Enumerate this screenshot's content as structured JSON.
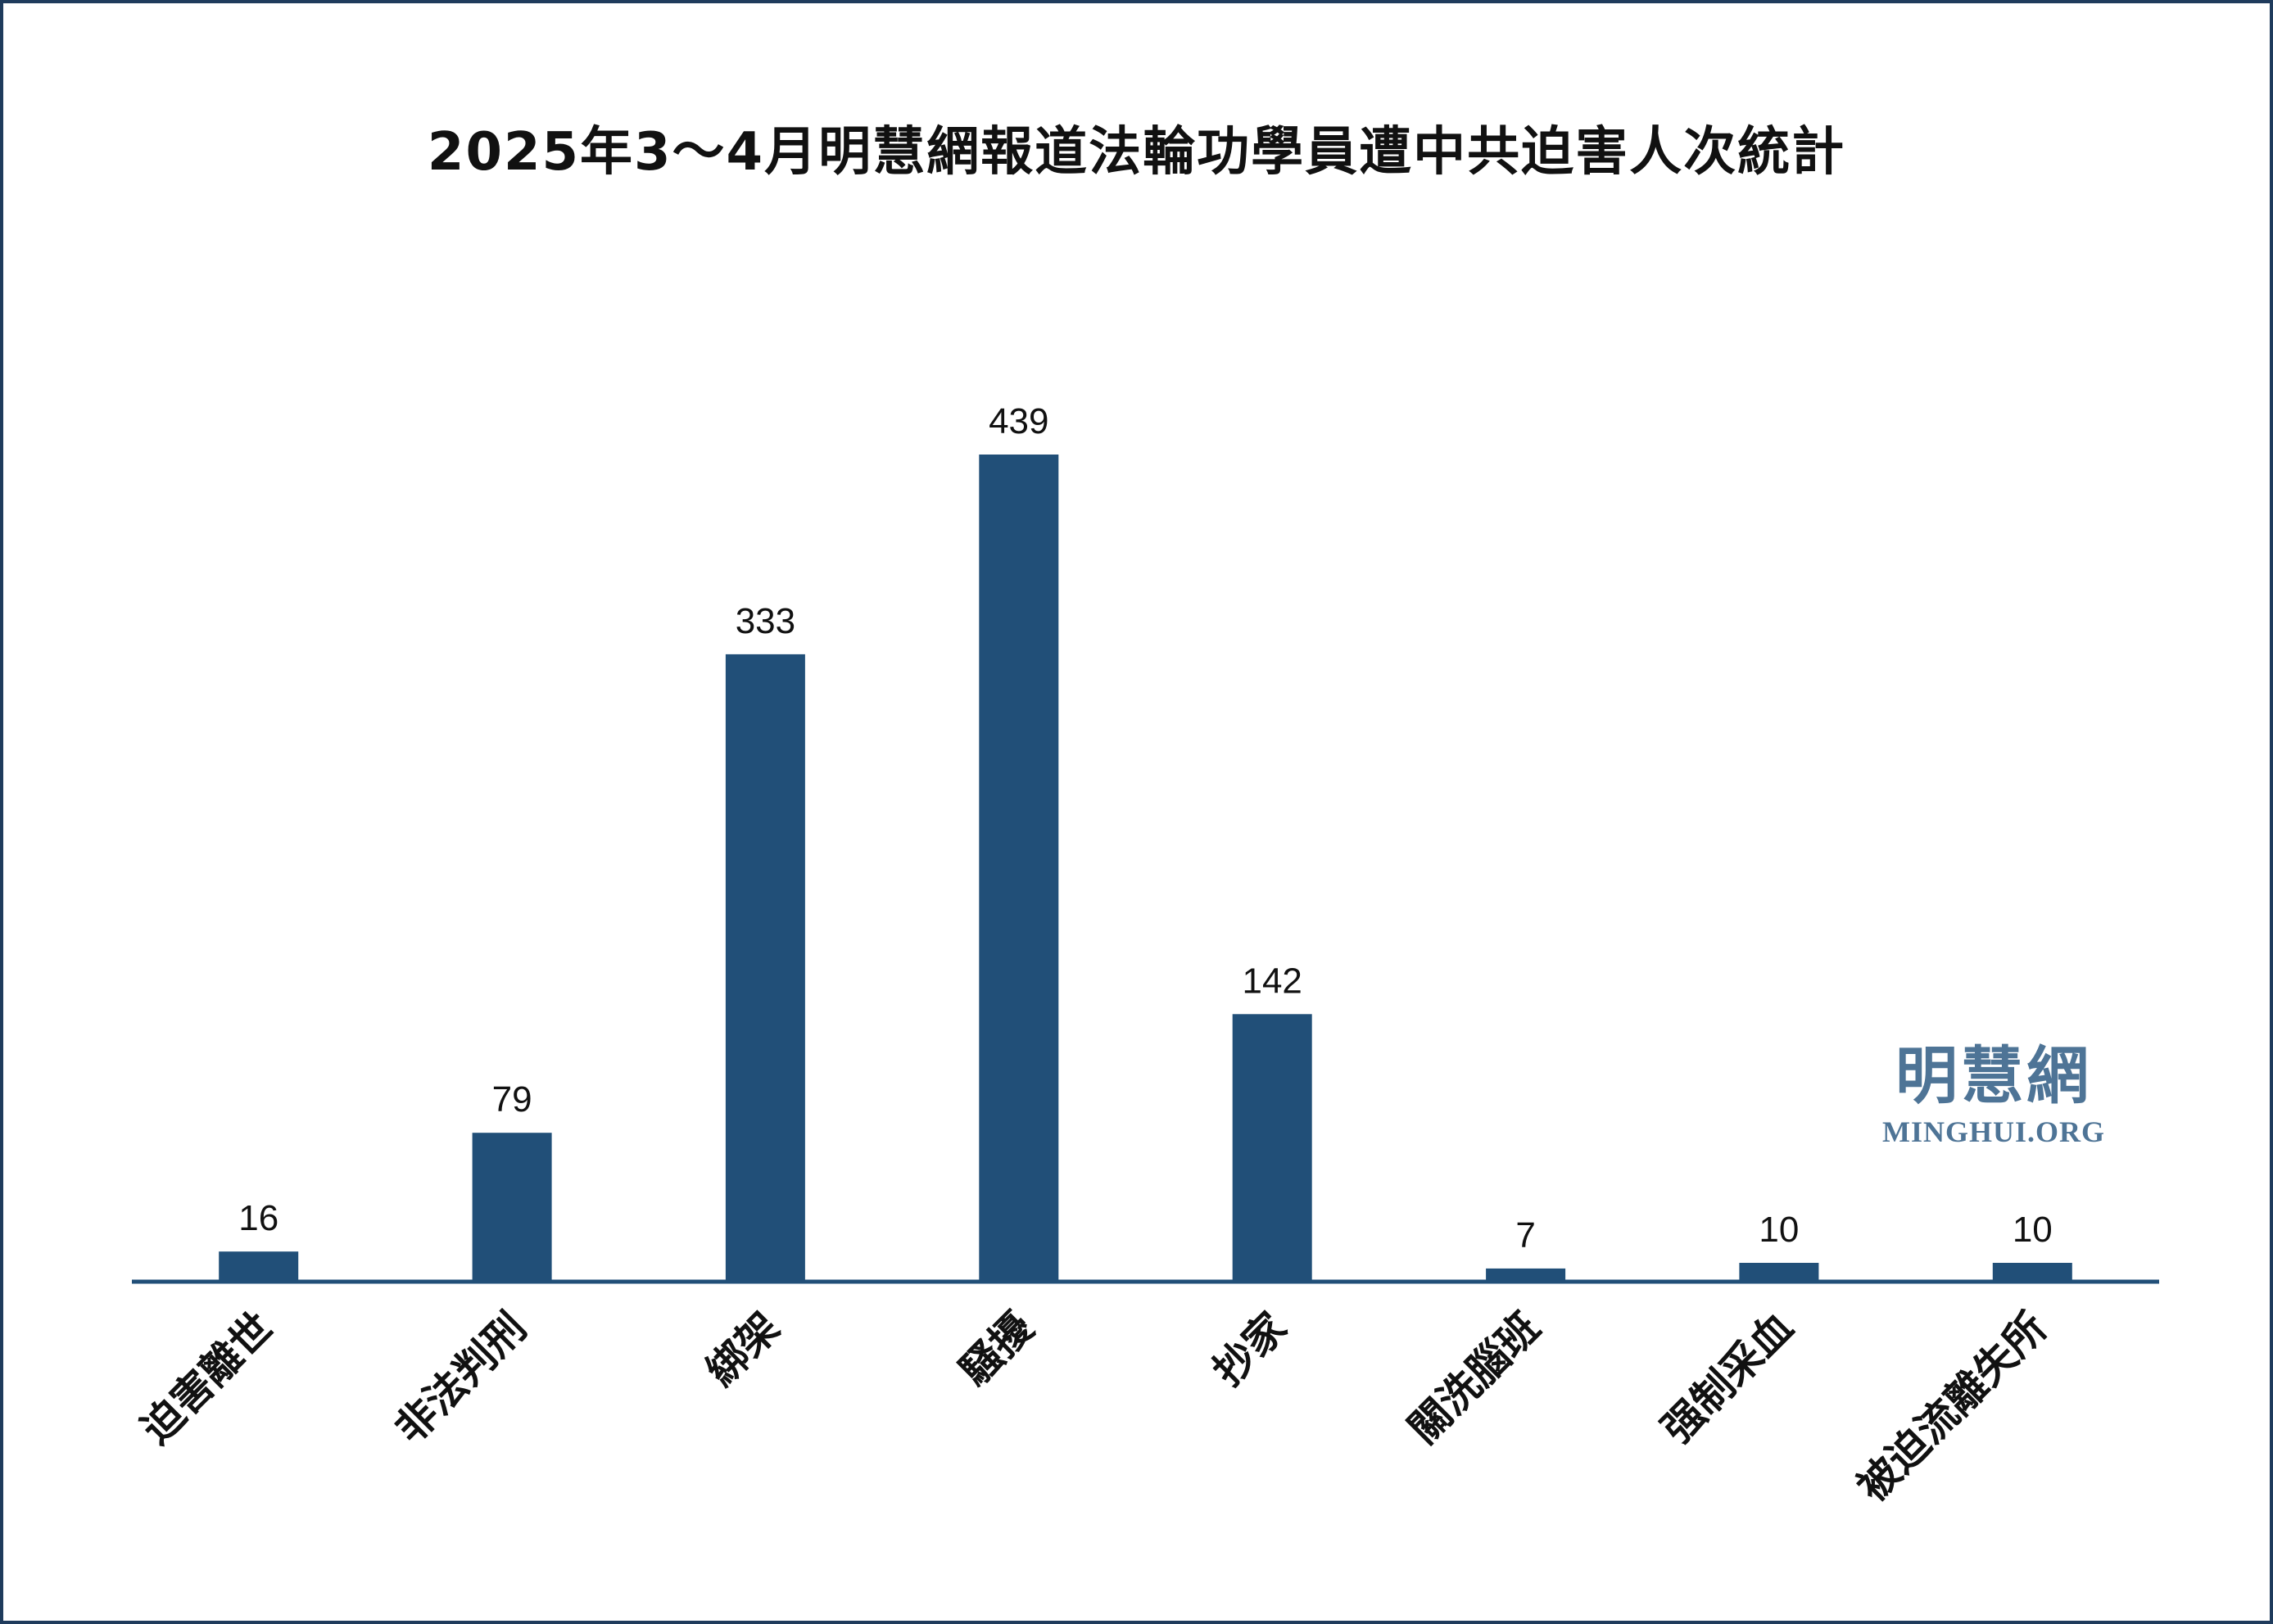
{
  "chart_data": {
    "type": "bar",
    "title": "2025年3～4月明慧網報道法輪功學員遭中共迫害人次統計",
    "categories": [
      "迫害離世",
      "非法判刑",
      "綁架",
      "騷擾",
      "抄家",
      "關洗腦班",
      "强制采血",
      "被迫流離失所"
    ],
    "values": [
      16,
      79,
      333,
      439,
      142,
      7,
      10,
      10
    ],
    "xlabel": "",
    "ylabel": "",
    "ylim": [
      0,
      439
    ],
    "grid": false,
    "legend": "none",
    "bar_color": "#214f78",
    "axis_color": "#214f78"
  },
  "watermark": {
    "name": "明慧網",
    "domain": "MINGHUI.ORG",
    "color": "#4e7496"
  },
  "frame": {
    "border_color": "#1f3b5c"
  }
}
